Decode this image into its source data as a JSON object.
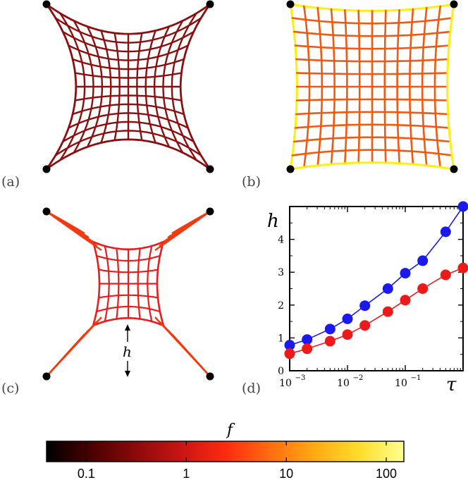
{
  "panels": {
    "a": {
      "label": "(a)",
      "grid_color": "#8a1010"
    },
    "b": {
      "label": "(b)",
      "grid_color": "#ef5a10",
      "edge_color": "#ffee10"
    },
    "c": {
      "label": "(c)",
      "grid_color": "#e81c1c",
      "arm_color": "#f03a10",
      "annotation": "h"
    },
    "d": {
      "label": "(d)"
    }
  },
  "chart_data": {
    "type": "scatter",
    "xscale": "log",
    "xlim": [
      0.001,
      1
    ],
    "ylim": [
      0,
      5
    ],
    "xlabel": "τ",
    "ylabel": "h",
    "xticks": [
      {
        "base": "10",
        "exp": "−3"
      },
      {
        "base": "10",
        "exp": "−2"
      },
      {
        "base": "10",
        "exp": "−1"
      }
    ],
    "yticks": [
      "0",
      "1",
      "2",
      "3",
      "4"
    ],
    "ytick_values": [
      0,
      1,
      2,
      3,
      4
    ],
    "series": [
      {
        "name": "blue",
        "color": "#1a1aee",
        "x": [
          0.001,
          0.002,
          0.005,
          0.01,
          0.02,
          0.05,
          0.1,
          0.2,
          0.5,
          1.0
        ],
        "y": [
          0.78,
          0.95,
          1.27,
          1.58,
          1.98,
          2.5,
          2.97,
          3.35,
          4.23,
          5.0
        ]
      },
      {
        "name": "red",
        "color": "#ee1a1a",
        "x": [
          0.001,
          0.002,
          0.005,
          0.01,
          0.02,
          0.05,
          0.1,
          0.2,
          0.5,
          1.0
        ],
        "y": [
          0.52,
          0.67,
          0.9,
          1.1,
          1.38,
          1.8,
          2.15,
          2.5,
          2.92,
          3.13
        ]
      }
    ]
  },
  "colorbar": {
    "title": "f",
    "tick_labels": [
      "0.1",
      "1",
      "10",
      "100"
    ],
    "tick_values": [
      0.1,
      1,
      10,
      100
    ],
    "range": [
      0.04,
      150
    ],
    "stops": [
      "#000000",
      "#4a0000",
      "#8c0a0a",
      "#c81414",
      "#ff2a10",
      "#ff6c10",
      "#ffaa14",
      "#ffdc2c",
      "#ffff90"
    ]
  }
}
